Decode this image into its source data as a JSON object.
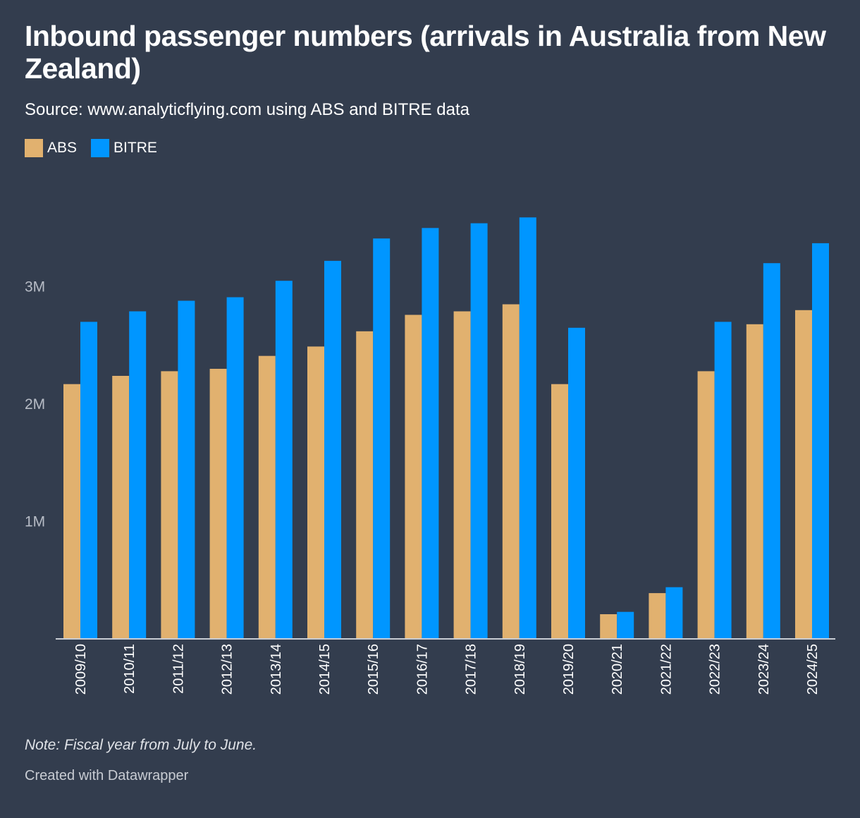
{
  "header": {
    "title": "Inbound passenger numbers (arrivals in Australia from New Zealand)",
    "subtitle": "Source: www.analyticflying.com using ABS and BITRE data"
  },
  "footer": {
    "note": "Note: Fiscal year from July to June.",
    "credit": "Created with Datawrapper"
  },
  "colors": {
    "background": "#333d4e",
    "abs": "#e1b16f",
    "bitre": "#0096ff",
    "axis_text": "#b7bcc6",
    "baseline": "#c8ccd3"
  },
  "chart_data": {
    "type": "bar",
    "title": "Inbound passenger numbers (arrivals in Australia from New Zealand)",
    "xlabel": "",
    "ylabel": "",
    "ylim": [
      0,
      3600000
    ],
    "yticks": [
      {
        "value": 1000000,
        "label": "1M"
      },
      {
        "value": 2000000,
        "label": "2M"
      },
      {
        "value": 3000000,
        "label": "3M"
      }
    ],
    "grid": false,
    "legend_position": "top-left",
    "categories": [
      "2009/10",
      "2010/11",
      "2011/12",
      "2012/13",
      "2013/14",
      "2014/15",
      "2015/16",
      "2016/17",
      "2017/18",
      "2018/19",
      "2019/20",
      "2020/21",
      "2021/22",
      "2022/23",
      "2023/24",
      "2024/25"
    ],
    "series": [
      {
        "name": "ABS",
        "color": "#e1b16f",
        "values": [
          2170000,
          2240000,
          2280000,
          2300000,
          2410000,
          2490000,
          2620000,
          2760000,
          2790000,
          2850000,
          2170000,
          210000,
          390000,
          2280000,
          2680000,
          2800000
        ]
      },
      {
        "name": "BITRE",
        "color": "#0096ff",
        "values": [
          2700000,
          2790000,
          2880000,
          2910000,
          3050000,
          3220000,
          3410000,
          3500000,
          3540000,
          3590000,
          2650000,
          230000,
          440000,
          2700000,
          3200000,
          3370000
        ]
      }
    ]
  }
}
